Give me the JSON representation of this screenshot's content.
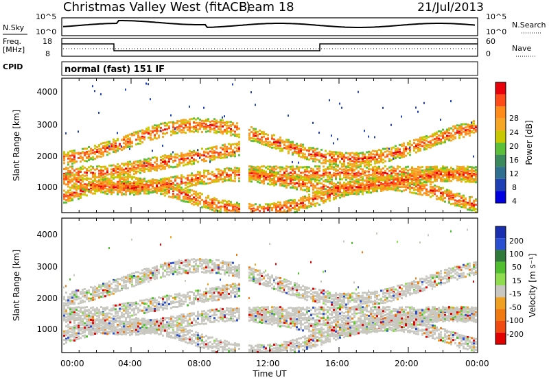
{
  "header": {
    "site": "Christmas Valley West (fitACF)",
    "beam": "Beam 18",
    "date": "21/Jul/2013"
  },
  "labels": {
    "nsky": "N.Sky",
    "nsearch": "N.Search",
    "freq_line1": "Freq.",
    "freq_line2": "[MHz]",
    "nave": "Nave",
    "cpid": "CPID",
    "mode": "normal (fast) 151 IF"
  },
  "noise_panel": {
    "left_ticks": [
      "10^5",
      "10^0"
    ],
    "right_ticks": [
      "10^5",
      "10^0"
    ]
  },
  "freq_panel": {
    "left_ticks": [
      "18",
      "8"
    ],
    "right_ticks": [
      "60",
      "0"
    ]
  },
  "chart_data": [
    {
      "type": "heatmap",
      "name": "power",
      "xlabel": "",
      "ylabel": "Slant Range [km]",
      "y_ticks": [
        "4000",
        "3000",
        "2000",
        "1000"
      ],
      "colorbar": {
        "label": "Power [dB]",
        "ticks": [
          "28",
          "24",
          "20",
          "16",
          "12",
          "8",
          "4"
        ],
        "colors": [
          "#e8000b",
          "#ff4a1a",
          "#ff8c1a",
          "#f5a623",
          "#c8c800",
          "#5cbf3a",
          "#3a8a5e",
          "#2f6f8f",
          "#1f3fb5",
          "#0000e0"
        ]
      }
    },
    {
      "type": "heatmap",
      "name": "velocity",
      "xlabel": "Time UT",
      "ylabel": "Slant Range [km]",
      "y_ticks": [
        "4000",
        "3000",
        "2000",
        "1000"
      ],
      "x_ticks": [
        "00:00",
        "04:00",
        "08:00",
        "12:00",
        "16:00",
        "20:00",
        "00:00"
      ],
      "colorbar": {
        "label": "Velocity [m s⁻¹]",
        "ticks": [
          "200",
          "100",
          "50",
          "15",
          "-15",
          "-50",
          "-100",
          "-200"
        ],
        "colors": [
          "#1a2fb0",
          "#2a4fd0",
          "#2f7a3a",
          "#4fbf2f",
          "#8fdc4f",
          "#c8c8c0",
          "#f0a020",
          "#f07a10",
          "#f04a10",
          "#e00000"
        ]
      }
    }
  ]
}
